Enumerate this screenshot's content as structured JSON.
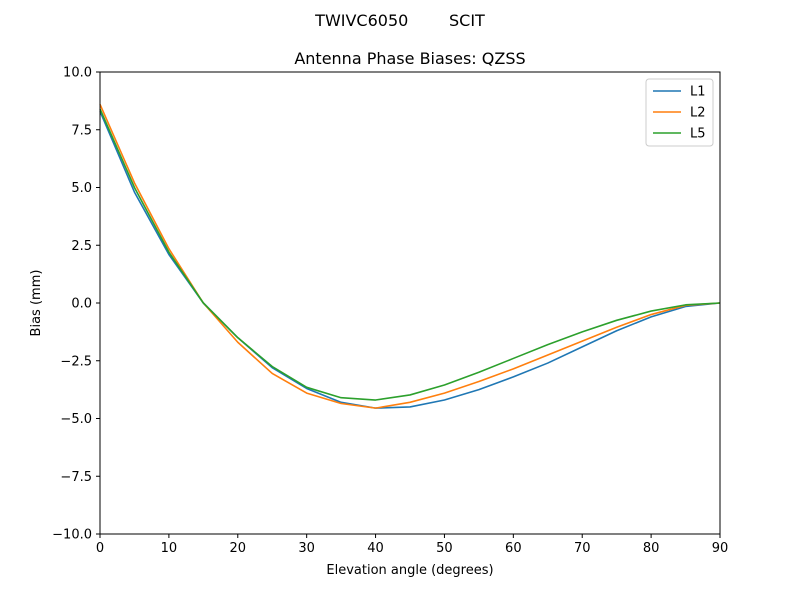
{
  "suptitle": "TWIVC6050        SCIT",
  "chart_data": {
    "type": "line",
    "title": "Antenna Phase Biases: QZSS",
    "xlabel": "Elevation angle (degrees)",
    "ylabel": "Bias (mm)",
    "xlim": [
      0,
      90
    ],
    "ylim": [
      -10,
      10
    ],
    "xticks": [
      0,
      10,
      20,
      30,
      40,
      50,
      60,
      70,
      80,
      90
    ],
    "yticks": [
      -10.0,
      -7.5,
      -5.0,
      -2.5,
      0.0,
      2.5,
      5.0,
      7.5,
      10.0
    ],
    "xtick_labels": [
      "0",
      "10",
      "20",
      "30",
      "40",
      "50",
      "60",
      "70",
      "80",
      "90"
    ],
    "ytick_labels": [
      "−10.0",
      "−7.5",
      "−5.0",
      "−2.5",
      "0.0",
      "2.5",
      "5.0",
      "7.5",
      "10.0"
    ],
    "grid": false,
    "legend_position": "top-right",
    "x": [
      0,
      5,
      10,
      15,
      20,
      25,
      30,
      35,
      40,
      45,
      50,
      55,
      60,
      65,
      70,
      75,
      80,
      85,
      90
    ],
    "series": [
      {
        "name": "L1",
        "color": "#1f77b4",
        "values": [
          8.3,
          4.8,
          2.1,
          0.0,
          -1.5,
          -2.8,
          -3.7,
          -4.3,
          -4.55,
          -4.5,
          -4.2,
          -3.75,
          -3.2,
          -2.6,
          -1.9,
          -1.2,
          -0.6,
          -0.15,
          0.0
        ]
      },
      {
        "name": "L2",
        "color": "#ff7f0e",
        "values": [
          8.6,
          5.2,
          2.35,
          0.0,
          -1.7,
          -3.05,
          -3.9,
          -4.35,
          -4.55,
          -4.3,
          -3.9,
          -3.4,
          -2.85,
          -2.25,
          -1.65,
          -1.05,
          -0.5,
          -0.1,
          0.0
        ]
      },
      {
        "name": "L5",
        "color": "#2ca02c",
        "values": [
          8.4,
          5.0,
          2.2,
          0.0,
          -1.5,
          -2.75,
          -3.65,
          -4.1,
          -4.2,
          -3.98,
          -3.55,
          -3.0,
          -2.4,
          -1.8,
          -1.25,
          -0.75,
          -0.35,
          -0.08,
          0.0
        ]
      }
    ]
  }
}
